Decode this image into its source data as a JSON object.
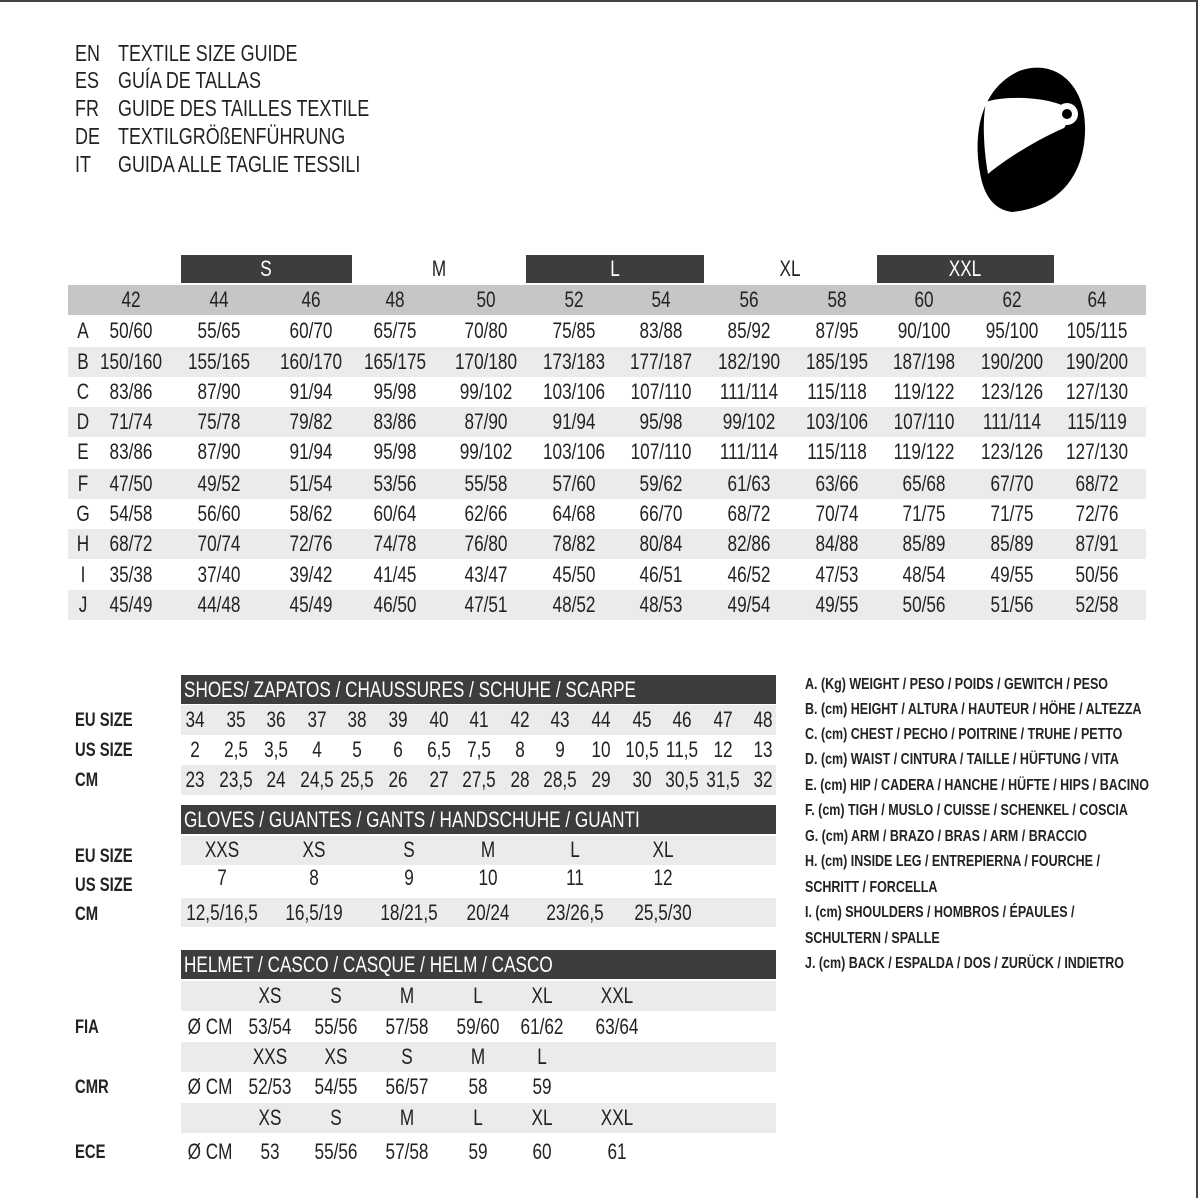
{
  "titles": [
    {
      "code": "EN",
      "text": "TEXTILE SIZE GUIDE"
    },
    {
      "code": "ES",
      "text": "GUÍA DE TALLAS"
    },
    {
      "code": "FR",
      "text": "GUIDE DES TAILLES TEXTILE"
    },
    {
      "code": "DE",
      "text": "TEXTILGRÖßENFÜHRUNG"
    },
    {
      "code": "IT",
      "text": "GUIDA ALLE TAGLIE TESSILI"
    }
  ],
  "logo_icon": "helmet-icon",
  "textile": {
    "size_groups": [
      "S",
      "M",
      "L",
      "XL",
      "XXL"
    ],
    "eu_sizes": [
      "42",
      "44",
      "46",
      "48",
      "50",
      "52",
      "54",
      "56",
      "58",
      "60",
      "62",
      "64"
    ],
    "rows": [
      {
        "key": "A",
        "values": [
          "50/60",
          "55/65",
          "60/70",
          "65/75",
          "70/80",
          "75/85",
          "83/88",
          "85/92",
          "87/95",
          "90/100",
          "95/100",
          "105/115"
        ]
      },
      {
        "key": "B",
        "values": [
          "150/160",
          "155/165",
          "160/170",
          "165/175",
          "170/180",
          "173/183",
          "177/187",
          "182/190",
          "185/195",
          "187/198",
          "190/200",
          "190/200"
        ]
      },
      {
        "key": "C",
        "values": [
          "83/86",
          "87/90",
          "91/94",
          "95/98",
          "99/102",
          "103/106",
          "107/110",
          "111/114",
          "115/118",
          "119/122",
          "123/126",
          "127/130"
        ]
      },
      {
        "key": "D",
        "values": [
          "71/74",
          "75/78",
          "79/82",
          "83/86",
          "87/90",
          "91/94",
          "95/98",
          "99/102",
          "103/106",
          "107/110",
          "111/114",
          "115/119"
        ]
      },
      {
        "key": "E",
        "values": [
          "83/86",
          "87/90",
          "91/94",
          "95/98",
          "99/102",
          "103/106",
          "107/110",
          "111/114",
          "115/118",
          "119/122",
          "123/126",
          "127/130"
        ]
      },
      {
        "key": "F",
        "values": [
          "47/50",
          "49/52",
          "51/54",
          "53/56",
          "55/58",
          "57/60",
          "59/62",
          "61/63",
          "63/66",
          "65/68",
          "67/70",
          "68/72"
        ]
      },
      {
        "key": "G",
        "values": [
          "54/58",
          "56/60",
          "58/62",
          "60/64",
          "62/66",
          "64/68",
          "66/70",
          "68/72",
          "70/74",
          "71/75",
          "71/75",
          "72/76"
        ]
      },
      {
        "key": "H",
        "values": [
          "68/72",
          "70/74",
          "72/76",
          "74/78",
          "76/80",
          "78/82",
          "80/84",
          "82/86",
          "84/88",
          "85/89",
          "85/89",
          "87/91"
        ]
      },
      {
        "key": "I",
        "values": [
          "35/38",
          "37/40",
          "39/42",
          "41/45",
          "43/47",
          "45/50",
          "46/51",
          "46/52",
          "47/53",
          "48/54",
          "49/55",
          "50/56"
        ]
      },
      {
        "key": "J",
        "values": [
          "45/49",
          "44/48",
          "45/49",
          "46/50",
          "47/51",
          "48/52",
          "48/53",
          "49/54",
          "49/55",
          "50/56",
          "51/56",
          "52/58"
        ]
      }
    ]
  },
  "shoes": {
    "title": "SHOES/ ZAPATOS / CHAUSSURES / SCHUHE / SCARPE",
    "rows": [
      {
        "label": "EU SIZE",
        "values": [
          "34",
          "35",
          "36",
          "37",
          "38",
          "39",
          "40",
          "41",
          "42",
          "43",
          "44",
          "45",
          "46",
          "47",
          "48"
        ]
      },
      {
        "label": "US SIZE",
        "values": [
          "2",
          "2,5",
          "3,5",
          "4",
          "5",
          "6",
          "6,5",
          "7,5",
          "8",
          "9",
          "10",
          "10,5",
          "11,5",
          "12",
          "13"
        ]
      },
      {
        "label": "CM",
        "values": [
          "23",
          "23,5",
          "24",
          "24,5",
          "25,5",
          "26",
          "27",
          "27,5",
          "28",
          "28,5",
          "29",
          "30",
          "30,5",
          "31,5",
          "32"
        ]
      }
    ]
  },
  "gloves": {
    "title": "GLOVES / GUANTES / GANTS / HANDSCHUHE / GUANTI",
    "rows": [
      {
        "label": "EU SIZE",
        "values": [
          "XXS",
          "XS",
          "S",
          "M",
          "L",
          "XL"
        ]
      },
      {
        "label": "US SIZE",
        "values": [
          "7",
          "8",
          "9",
          "10",
          "11",
          "12"
        ]
      },
      {
        "label": "CM",
        "values": [
          "12,5/16,5",
          "16,5/19",
          "18/21,5",
          "20/24",
          "23/26,5",
          "25,5/30"
        ]
      }
    ]
  },
  "helmet": {
    "title": "HELMET / CASCO / CASQUE / HELM / CASCO",
    "unit": "Ø CM",
    "standards": [
      {
        "label": "FIA",
        "sizes": [
          "XS",
          "S",
          "M",
          "L",
          "XL",
          "XXL"
        ],
        "values": [
          "53/54",
          "55/56",
          "57/58",
          "59/60",
          "61/62",
          "63/64"
        ]
      },
      {
        "label": "CMR",
        "sizes": [
          "XXS",
          "XS",
          "S",
          "M",
          "L",
          ""
        ],
        "values": [
          "52/53",
          "54/55",
          "56/57",
          "58",
          "59",
          ""
        ]
      },
      {
        "label": "ECE",
        "sizes": [
          "XS",
          "S",
          "M",
          "L",
          "XL",
          "XXL"
        ],
        "values": [
          "53",
          "55/56",
          "57/58",
          "59",
          "60",
          "61"
        ]
      }
    ]
  },
  "legend": [
    "A. (Kg) WEIGHT / PESO / POIDS / GEWITCH / PESO",
    "B. (cm) HEIGHT / ALTURA / HAUTEUR / HÖHE / ALTEZZA",
    "C. (cm) CHEST / PECHO / POITRINE / TRUHE / PETTO",
    "D. (cm) WAIST / CINTURA / TAILLE / HÜFTUNG / VITA",
    "E. (cm) HIP / CADERA / HANCHE / HÜFTE / HIPS /  BACINO",
    "F.  (cm) TIGH / MUSLO / CUISSE / SCHENKEL / COSCIA",
    "G. (cm) ARM  / BRAZO / BRAS / ARM / BRACCIO",
    "H. (cm) INSIDE LEG / ENTREPIERNA / FOURCHE /",
    "SCHRITT / FORCELLA",
    "I.  (cm) SHOULDERS / HOMBROS / ÉPAULES /",
    "SCHULTERN / SPALLE",
    "J. (cm) BACK / ESPALDA / DOS / ZURÜCK / INDIETRO"
  ]
}
